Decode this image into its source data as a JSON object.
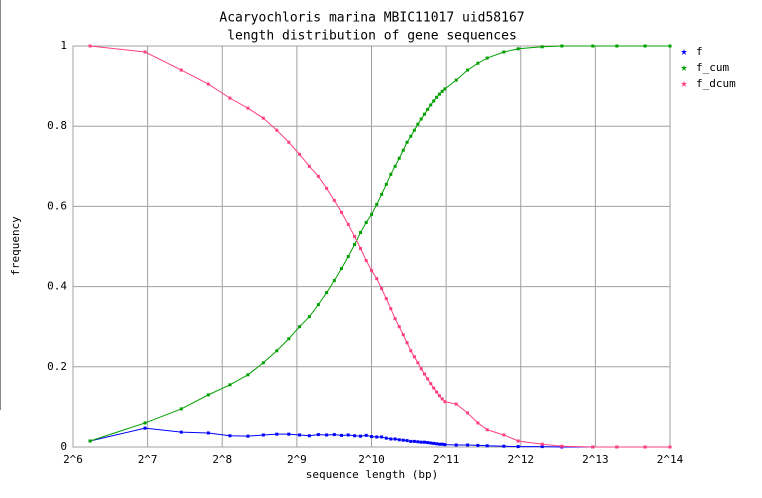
{
  "chart_data": {
    "type": "line",
    "title": "Acaryochloris marina MBIC11017 uid58167",
    "subtitle": "length distribution of gene sequences",
    "x_label": "sequence length (bp)",
    "y_label": "frequency",
    "x_scale": "log2",
    "xlim": [
      64,
      16384
    ],
    "xticks": [
      {
        "value": 64,
        "label": "2^6"
      },
      {
        "value": 128,
        "label": "2^7"
      },
      {
        "value": 256,
        "label": "2^8"
      },
      {
        "value": 512,
        "label": "2^9"
      },
      {
        "value": 1024,
        "label": "2^10"
      },
      {
        "value": 2048,
        "label": "2^11"
      },
      {
        "value": 4096,
        "label": "2^12"
      },
      {
        "value": 8192,
        "label": "2^13"
      },
      {
        "value": 16384,
        "label": "2^14"
      }
    ],
    "ylim": [
      0,
      1
    ],
    "yticks": [
      0,
      0.2,
      0.4,
      0.6,
      0.8,
      1
    ],
    "grid": true,
    "legend": "right",
    "x": [
      75,
      125,
      175,
      225,
      275,
      325,
      375,
      425,
      475,
      525,
      575,
      625,
      675,
      725,
      775,
      825,
      875,
      925,
      975,
      1025,
      1075,
      1125,
      1175,
      1225,
      1275,
      1325,
      1375,
      1425,
      1475,
      1525,
      1575,
      1625,
      1675,
      1725,
      1775,
      1825,
      1875,
      1925,
      1975,
      2025,
      2250,
      2500,
      2750,
      3000,
      3500,
      4000,
      5000,
      6000,
      8000,
      10000,
      13000,
      16384
    ],
    "series": [
      {
        "name": "f",
        "color": "#0000ff",
        "values": [
          0.015,
          0.047,
          0.037,
          0.035,
          0.028,
          0.027,
          0.03,
          0.032,
          0.032,
          0.03,
          0.028,
          0.031,
          0.03,
          0.031,
          0.029,
          0.03,
          0.028,
          0.027,
          0.029,
          0.026,
          0.025,
          0.025,
          0.022,
          0.02,
          0.02,
          0.018,
          0.017,
          0.016,
          0.014,
          0.014,
          0.013,
          0.012,
          0.012,
          0.011,
          0.01,
          0.009,
          0.008,
          0.007,
          0.007,
          0.006,
          0.005,
          0.005,
          0.004,
          0.003,
          0.002,
          0.001,
          0.001,
          0,
          0,
          0,
          0,
          0
        ]
      },
      {
        "name": "f_cum",
        "color": "#00a000",
        "values": [
          0.015,
          0.06,
          0.095,
          0.13,
          0.155,
          0.18,
          0.21,
          0.24,
          0.27,
          0.3,
          0.325,
          0.355,
          0.385,
          0.415,
          0.445,
          0.475,
          0.505,
          0.535,
          0.56,
          0.58,
          0.605,
          0.63,
          0.655,
          0.68,
          0.7,
          0.72,
          0.74,
          0.76,
          0.775,
          0.79,
          0.805,
          0.818,
          0.83,
          0.842,
          0.853,
          0.863,
          0.872,
          0.88,
          0.887,
          0.893,
          0.915,
          0.94,
          0.957,
          0.97,
          0.985,
          0.993,
          0.998,
          1,
          1,
          1,
          1,
          1
        ]
      },
      {
        "name": "f_dcum",
        "color": "#ff4080",
        "values": [
          1,
          0.985,
          0.94,
          0.905,
          0.87,
          0.845,
          0.82,
          0.79,
          0.76,
          0.73,
          0.7,
          0.675,
          0.645,
          0.615,
          0.585,
          0.555,
          0.525,
          0.495,
          0.465,
          0.44,
          0.42,
          0.395,
          0.37,
          0.345,
          0.32,
          0.3,
          0.28,
          0.26,
          0.24,
          0.225,
          0.21,
          0.195,
          0.182,
          0.17,
          0.158,
          0.147,
          0.137,
          0.128,
          0.12,
          0.113,
          0.107,
          0.085,
          0.06,
          0.043,
          0.03,
          0.015,
          0.007,
          0.002,
          0,
          0,
          0,
          0
        ]
      }
    ]
  }
}
